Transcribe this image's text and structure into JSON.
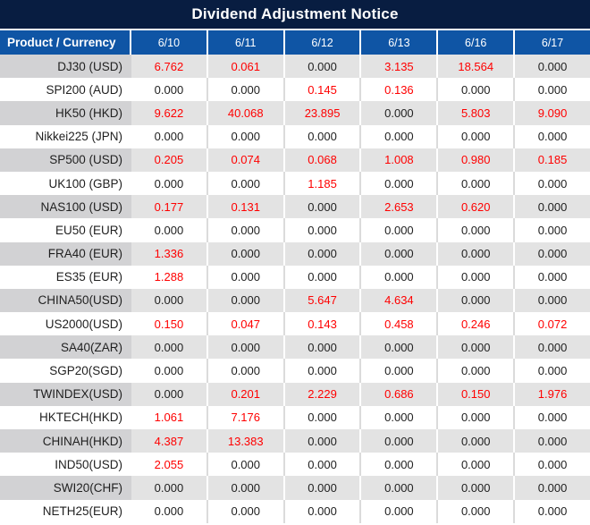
{
  "title": "Dividend Adjustment Notice",
  "table": {
    "product_header": "Product / Currency",
    "dates": [
      "6/10",
      "6/11",
      "6/12",
      "6/13",
      "6/16",
      "6/17"
    ],
    "rows": [
      {
        "product": "DJ30 (USD)",
        "values": [
          "6.762",
          "0.061",
          "0.000",
          "3.135",
          "18.564",
          "0.000"
        ]
      },
      {
        "product": "SPI200 (AUD)",
        "values": [
          "0.000",
          "0.000",
          "0.145",
          "0.136",
          "0.000",
          "0.000"
        ]
      },
      {
        "product": "HK50 (HKD)",
        "values": [
          "9.622",
          "40.068",
          "23.895",
          "0.000",
          "5.803",
          "9.090"
        ]
      },
      {
        "product": "Nikkei225 (JPN)",
        "values": [
          "0.000",
          "0.000",
          "0.000",
          "0.000",
          "0.000",
          "0.000"
        ]
      },
      {
        "product": "SP500 (USD)",
        "values": [
          "0.205",
          "0.074",
          "0.068",
          "1.008",
          "0.980",
          "0.185"
        ]
      },
      {
        "product": "UK100 (GBP)",
        "values": [
          "0.000",
          "0.000",
          "1.185",
          "0.000",
          "0.000",
          "0.000"
        ]
      },
      {
        "product": "NAS100 (USD)",
        "values": [
          "0.177",
          "0.131",
          "0.000",
          "2.653",
          "0.620",
          "0.000"
        ]
      },
      {
        "product": "EU50 (EUR)",
        "values": [
          "0.000",
          "0.000",
          "0.000",
          "0.000",
          "0.000",
          "0.000"
        ]
      },
      {
        "product": "FRA40 (EUR)",
        "values": [
          "1.336",
          "0.000",
          "0.000",
          "0.000",
          "0.000",
          "0.000"
        ]
      },
      {
        "product": "ES35 (EUR)",
        "values": [
          "1.288",
          "0.000",
          "0.000",
          "0.000",
          "0.000",
          "0.000"
        ]
      },
      {
        "product": "CHINA50(USD)",
        "values": [
          "0.000",
          "0.000",
          "5.647",
          "4.634",
          "0.000",
          "0.000"
        ]
      },
      {
        "product": "US2000(USD)",
        "values": [
          "0.150",
          "0.047",
          "0.143",
          "0.458",
          "0.246",
          "0.072"
        ]
      },
      {
        "product": "SA40(ZAR)",
        "values": [
          "0.000",
          "0.000",
          "0.000",
          "0.000",
          "0.000",
          "0.000"
        ]
      },
      {
        "product": "SGP20(SGD)",
        "values": [
          "0.000",
          "0.000",
          "0.000",
          "0.000",
          "0.000",
          "0.000"
        ]
      },
      {
        "product": "TWINDEX(USD)",
        "values": [
          "0.000",
          "0.201",
          "2.229",
          "0.686",
          "0.150",
          "1.976"
        ]
      },
      {
        "product": "HKTECH(HKD)",
        "values": [
          "1.061",
          "7.176",
          "0.000",
          "0.000",
          "0.000",
          "0.000"
        ]
      },
      {
        "product": "CHINAH(HKD)",
        "values": [
          "4.387",
          "13.383",
          "0.000",
          "0.000",
          "0.000",
          "0.000"
        ]
      },
      {
        "product": "IND50(USD)",
        "values": [
          "2.055",
          "0.000",
          "0.000",
          "0.000",
          "0.000",
          "0.000"
        ]
      },
      {
        "product": "SWI20(CHF)",
        "values": [
          "0.000",
          "0.000",
          "0.000",
          "0.000",
          "0.000",
          "0.000"
        ]
      },
      {
        "product": "NETH25(EUR)",
        "values": [
          "0.000",
          "0.000",
          "0.000",
          "0.000",
          "0.000",
          "0.000"
        ]
      }
    ]
  },
  "colors": {
    "title_bg": "#081D41",
    "title_text": "#FFFFFF",
    "header_bg": "#0F55A5",
    "header_text": "#FFFFFF",
    "row_alt_product_bg": "#D2D2D4",
    "row_alt_value_bg": "#E3E3E3",
    "gray_row_divider": "#FFFFFF",
    "white_row_divider": "#DBDBDB",
    "product_text": "#1F1F1F",
    "zero_value": "#212121",
    "nonzero_value": "#FF0000"
  }
}
